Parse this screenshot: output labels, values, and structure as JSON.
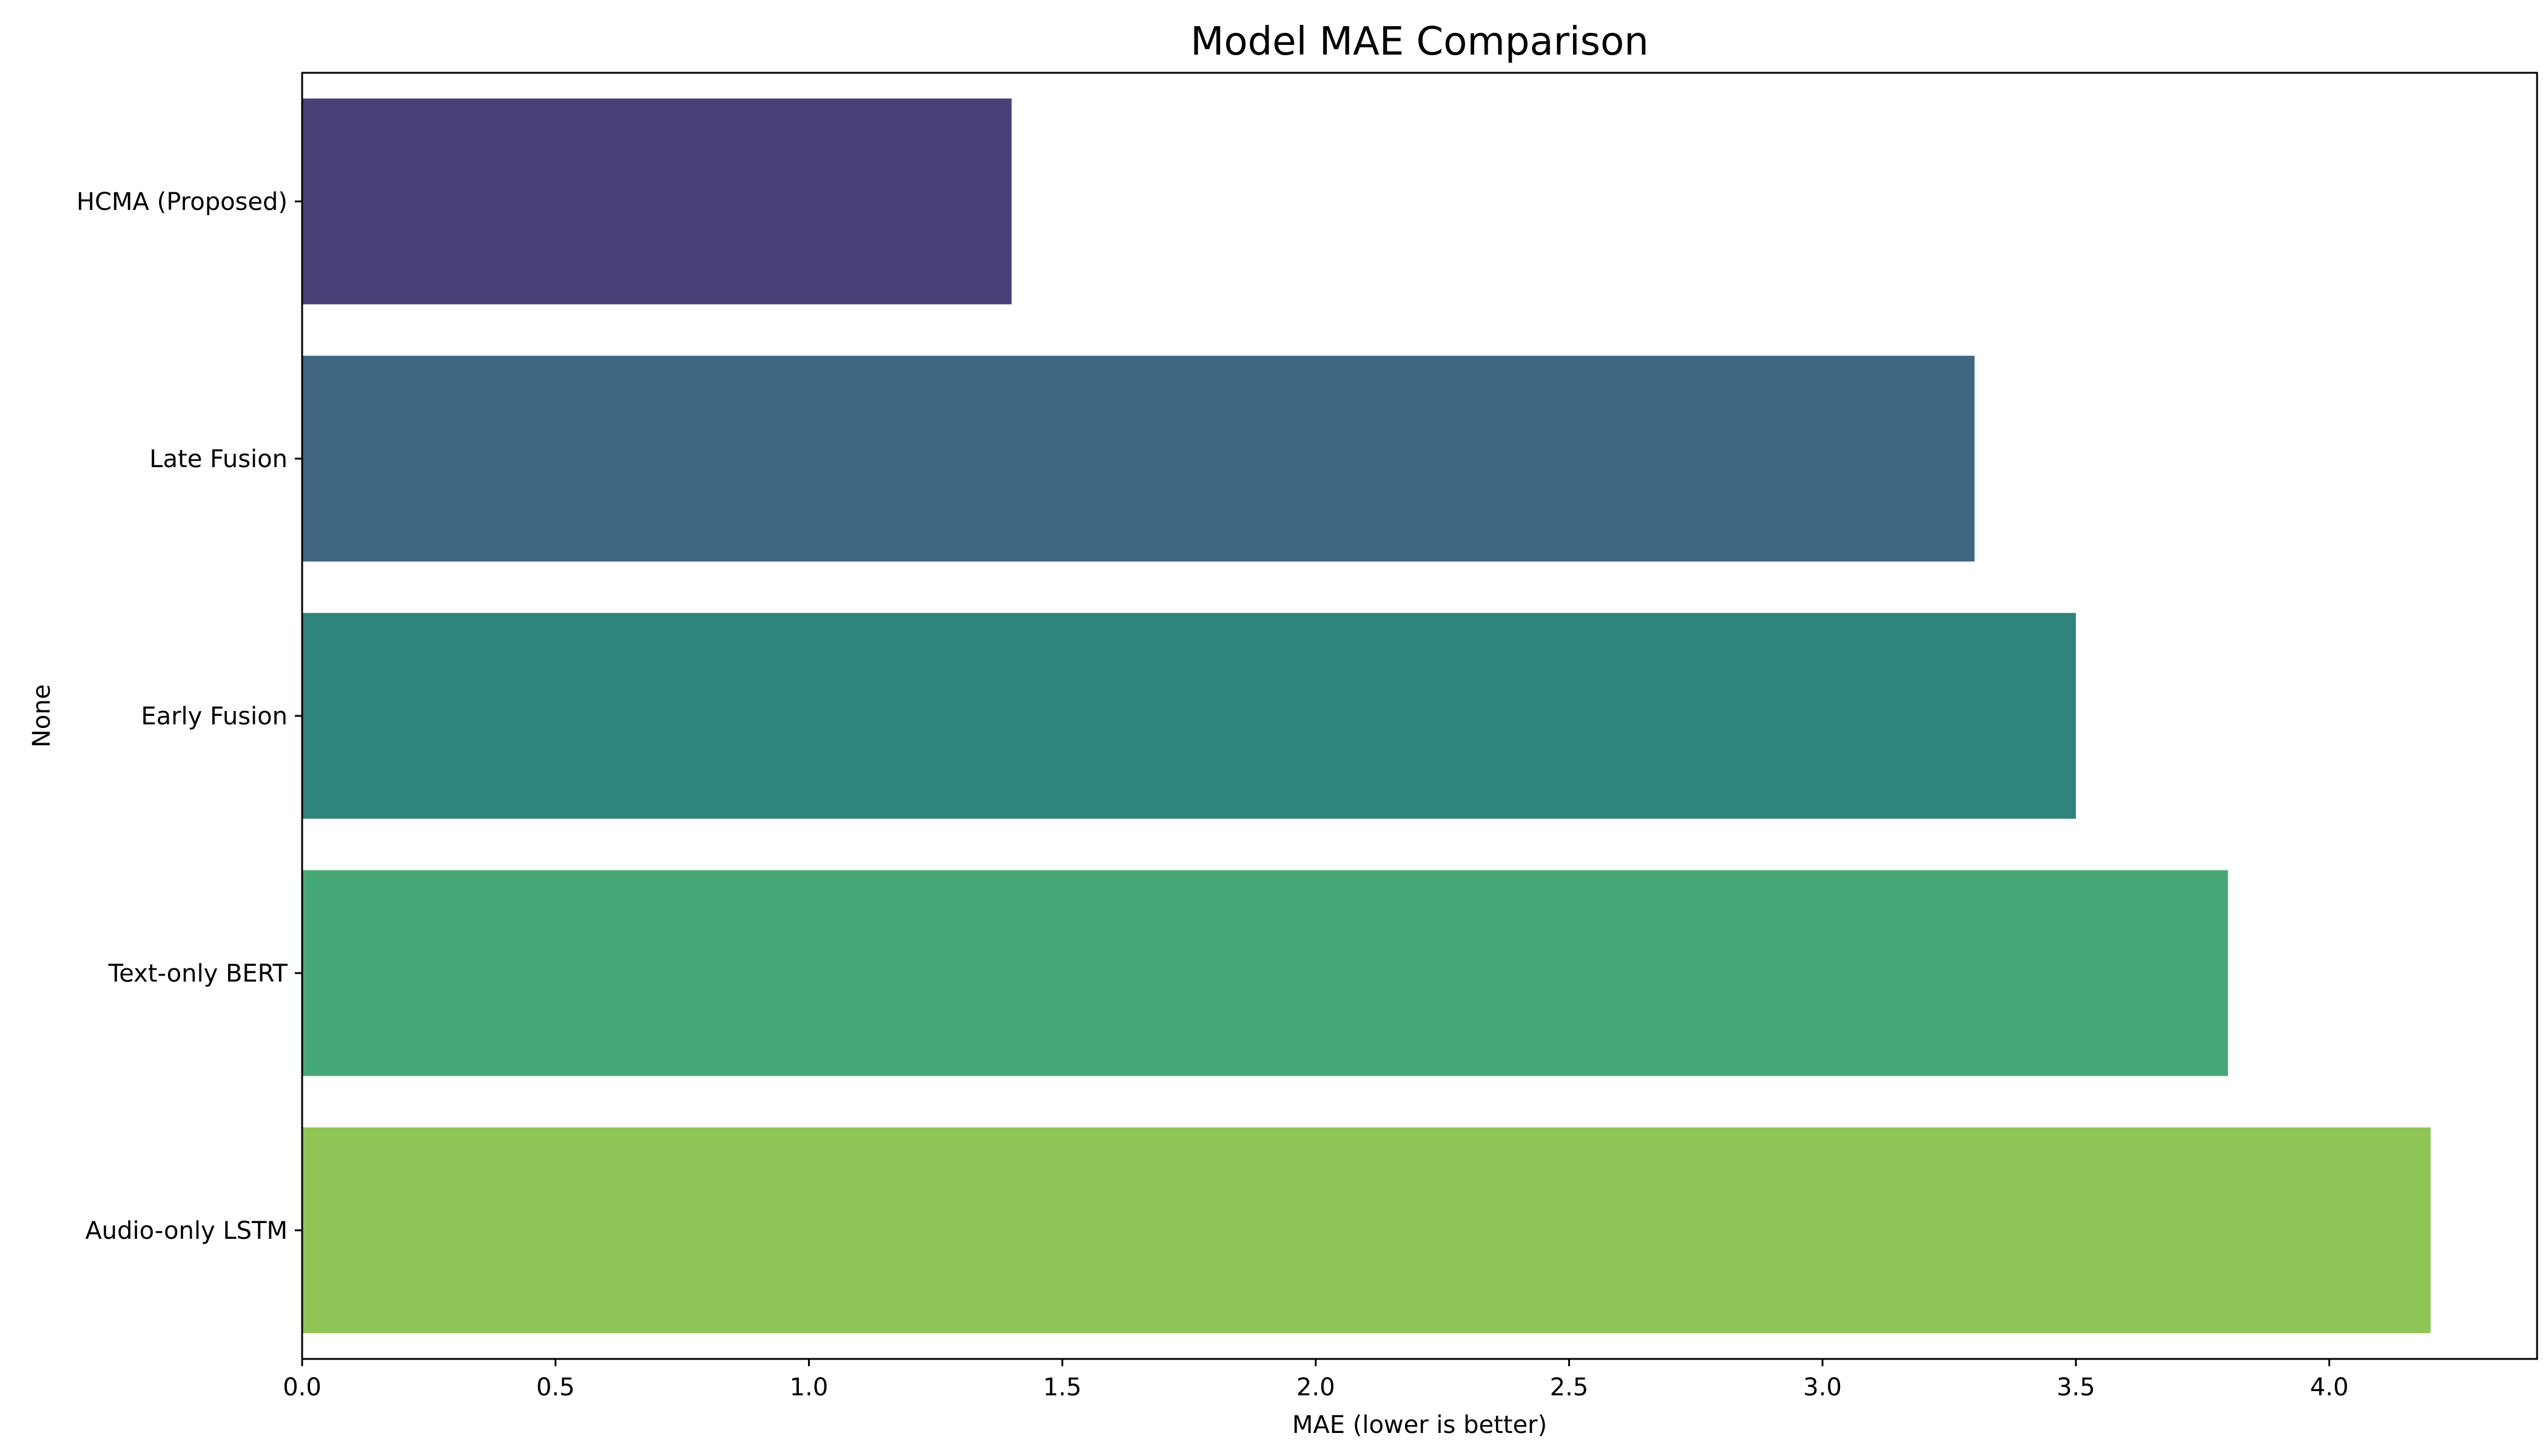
{
  "chart_data": {
    "type": "bar",
    "orientation": "horizontal",
    "title": "Model MAE Comparison",
    "xlabel": "MAE (lower is better)",
    "ylabel": "None",
    "categories": [
      "HCMA (Proposed)",
      "Late Fusion",
      "Early Fusion",
      "Text-only BERT",
      "Audio-only LSTM"
    ],
    "values": [
      1.4,
      3.3,
      3.5,
      3.8,
      4.2
    ],
    "colors": [
      "#4a4078",
      "#3e6681",
      "#2e837c",
      "#47a877",
      "#8fc456"
    ],
    "xlim": [
      0,
      4.41
    ],
    "xticks": [
      "0.0",
      "0.5",
      "1.0",
      "1.5",
      "2.0",
      "2.5",
      "3.0",
      "3.5",
      "4.0"
    ],
    "grid": false,
    "legend": "none"
  }
}
